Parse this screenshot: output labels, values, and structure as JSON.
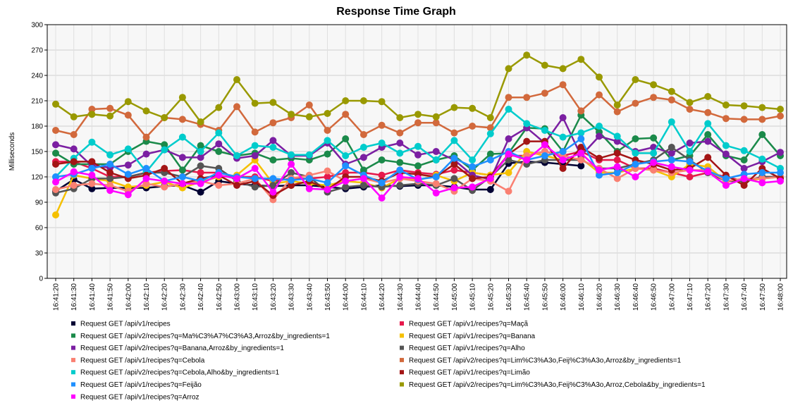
{
  "chart_data": {
    "type": "line",
    "title": "Response Time Graph",
    "xlabel": "",
    "ylabel": "Milliseconds",
    "ylim": [
      0,
      300
    ],
    "yticks": [
      0,
      30,
      60,
      90,
      120,
      150,
      180,
      210,
      240,
      270,
      300
    ],
    "grid": true,
    "legend_position": "bottom",
    "x": [
      "16:41:20",
      "16:41:30",
      "16:41:40",
      "16:41:50",
      "16:42:00",
      "16:42:10",
      "16:42:20",
      "16:42:30",
      "16:42:40",
      "16:42:50",
      "16:43:00",
      "16:43:10",
      "16:43:20",
      "16:43:30",
      "16:43:40",
      "16:43:50",
      "16:44:00",
      "16:44:10",
      "16:44:20",
      "16:44:30",
      "16:44:40",
      "16:44:50",
      "16:45:00",
      "16:45:10",
      "16:45:20",
      "16:45:30",
      "16:45:40",
      "16:45:50",
      "16:46:00",
      "16:46:10",
      "16:46:20",
      "16:46:30",
      "16:46:40",
      "16:46:50",
      "16:47:00",
      "16:47:10",
      "16:47:20",
      "16:47:30",
      "16:47:40",
      "16:47:50",
      "16:48:00"
    ],
    "series": [
      {
        "name": "Request GET /api/v1/recipes",
        "color": "#000033",
        "values": [
          103,
          117,
          106,
          107,
          107,
          107,
          109,
          110,
          102,
          115,
          112,
          110,
          109,
          110,
          110,
          108,
          106,
          108,
          110,
          109,
          110,
          110,
          108,
          105,
          105,
          136,
          138,
          137,
          135,
          133,
          null,
          null,
          null,
          null,
          null,
          null,
          null,
          null,
          null,
          null,
          null
        ]
      },
      {
        "name": "Request GET /api/v1/recipes?q=Maçã",
        "color": "#e6194b",
        "values": [
          138,
          138,
          130,
          120,
          120,
          125,
          127,
          128,
          125,
          125,
          120,
          120,
          115,
          118,
          118,
          120,
          125,
          125,
          122,
          128,
          125,
          123,
          128,
          125,
          122,
          145,
          145,
          150,
          145,
          150,
          140,
          140,
          130,
          130,
          125,
          120,
          125,
          120,
          115,
          120,
          120
        ]
      },
      {
        "name": "Request GET /api/v2/recipes?q=Ma%C3%A7%C3%A3,Arroz&by_ingredients=1",
        "color": "#1b8a4a",
        "values": [
          148,
          135,
          135,
          135,
          150,
          162,
          158,
          128,
          157,
          150,
          145,
          148,
          140,
          142,
          140,
          147,
          165,
          128,
          140,
          137,
          133,
          140,
          145,
          128,
          147,
          148,
          178,
          177,
          150,
          193,
          173,
          150,
          165,
          166,
          140,
          145,
          170,
          145,
          140,
          170,
          145
        ]
      },
      {
        "name": "Request GET /api/v1/recipes?q=Banana",
        "color": "#f5c000",
        "values": [
          75,
          122,
          118,
          115,
          108,
          110,
          114,
          107,
          114,
          120,
          122,
          140,
          112,
          115,
          112,
          110,
          115,
          113,
          107,
          118,
          116,
          122,
          115,
          125,
          122,
          125,
          150,
          145,
          140,
          142,
          125,
          125,
          130,
          128,
          120,
          135,
          132,
          115,
          115,
          118,
          120
        ]
      },
      {
        "name": "Request GET /api/v2/recipes?q=Banana,Arroz&by_ingredients=1",
        "color": "#7b1fa2",
        "values": [
          158,
          153,
          133,
          131,
          134,
          147,
          152,
          143,
          143,
          159,
          142,
          145,
          163,
          145,
          145,
          160,
          135,
          143,
          155,
          160,
          146,
          150,
          140,
          122,
          117,
          165,
          178,
          160,
          190,
          145,
          168,
          162,
          150,
          155,
          148,
          160,
          162,
          147,
          130,
          138,
          149
        ]
      },
      {
        "name": "Request GET /api/v1/recipes?q=Alho",
        "color": "#555555",
        "values": [
          101,
          106,
          118,
          118,
          120,
          125,
          125,
          120,
          133,
          130,
          115,
          108,
          110,
          125,
          120,
          102,
          108,
          110,
          108,
          110,
          112,
          110,
          118,
          104,
          120,
          140,
          135,
          140,
          140,
          140,
          130,
          130,
          135,
          140,
          155,
          140,
          125,
          115,
          115,
          120,
          120
        ]
      },
      {
        "name": "Request GET /api/v1/recipes?q=Cebola",
        "color": "#fa8072",
        "values": [
          105,
          110,
          112,
          110,
          103,
          112,
          108,
          112,
          115,
          110,
          112,
          118,
          93,
          118,
          122,
          127,
          115,
          118,
          113,
          118,
          115,
          112,
          103,
          118,
          115,
          103,
          145,
          150,
          145,
          140,
          130,
          118,
          130,
          128,
          125,
          128,
          128,
          115,
          118,
          118,
          120
        ]
      },
      {
        "name": "Request GET /api/v2/recipes?q=Lim%C3%A3o,Feij%C3%A3o,Arroz&by_ingredients=1",
        "color": "#d2693c",
        "values": [
          175,
          170,
          200,
          201,
          193,
          167,
          190,
          188,
          182,
          175,
          203,
          173,
          184,
          190,
          205,
          175,
          194,
          170,
          181,
          172,
          184,
          184,
          172,
          180,
          178,
          214,
          214,
          219,
          229,
          198,
          217,
          197,
          207,
          214,
          211,
          200,
          196,
          189,
          188,
          188,
          192
        ]
      },
      {
        "name": "Request GET /api/v2/recipes?q=Cebola,Alho&by_ingredients=1",
        "color": "#00cccc",
        "values": [
          120,
          142,
          161,
          146,
          153,
          126,
          152,
          167,
          150,
          172,
          145,
          157,
          155,
          146,
          146,
          163,
          145,
          155,
          160,
          148,
          156,
          140,
          163,
          140,
          171,
          200,
          183,
          175,
          167,
          172,
          180,
          168,
          148,
          148,
          185,
          150,
          183,
          157,
          151,
          141,
          130
        ]
      },
      {
        "name": "Request GET /api/v1/recipes?q=Limão",
        "color": "#a31515",
        "values": [
          135,
          138,
          138,
          125,
          118,
          122,
          130,
          112,
          118,
          122,
          110,
          115,
          98,
          110,
          115,
          105,
          120,
          120,
          115,
          125,
          123,
          120,
          135,
          118,
          120,
          147,
          162,
          162,
          130,
          155,
          142,
          148,
          140,
          135,
          128,
          130,
          143,
          122,
          110,
          130,
          118
        ]
      },
      {
        "name": "Request GET /api/v1/recipes?q=Feijão",
        "color": "#1e90ff",
        "values": [
          120,
          123,
          130,
          135,
          123,
          130,
          115,
          120,
          115,
          125,
          120,
          118,
          118,
          116,
          118,
          113,
          133,
          122,
          113,
          128,
          117,
          120,
          142,
          132,
          140,
          150,
          140,
          145,
          150,
          165,
          122,
          125,
          135,
          138,
          140,
          138,
          127,
          118,
          123,
          125,
          125
        ]
      },
      {
        "name": "Request GET /api/v2/recipes?q=Lim%C3%A3o,Feij%C3%A3o,Arroz,Cebola&by_ingredients=1",
        "color": "#999900",
        "values": [
          206,
          191,
          194,
          192,
          209,
          198,
          190,
          214,
          185,
          202,
          235,
          207,
          208,
          194,
          191,
          195,
          210,
          210,
          209,
          190,
          194,
          191,
          202,
          201,
          190,
          248,
          264,
          252,
          248,
          259,
          238,
          205,
          235,
          229,
          221,
          208,
          215,
          205,
          204,
          202,
          200
        ]
      },
      {
        "name": "Request GET /api/v1/recipes?q=Arroz",
        "color": "#ff00ff",
        "values": [
          114,
          126,
          122,
          104,
          99,
          118,
          115,
          112,
          112,
          122,
          118,
          130,
          102,
          135,
          106,
          105,
          115,
          118,
          95,
          120,
          118,
          101,
          107,
          108,
          118,
          147,
          140,
          158,
          140,
          148,
          128,
          132,
          120,
          137,
          132,
          128,
          126,
          110,
          118,
          113,
          115
        ]
      }
    ]
  }
}
